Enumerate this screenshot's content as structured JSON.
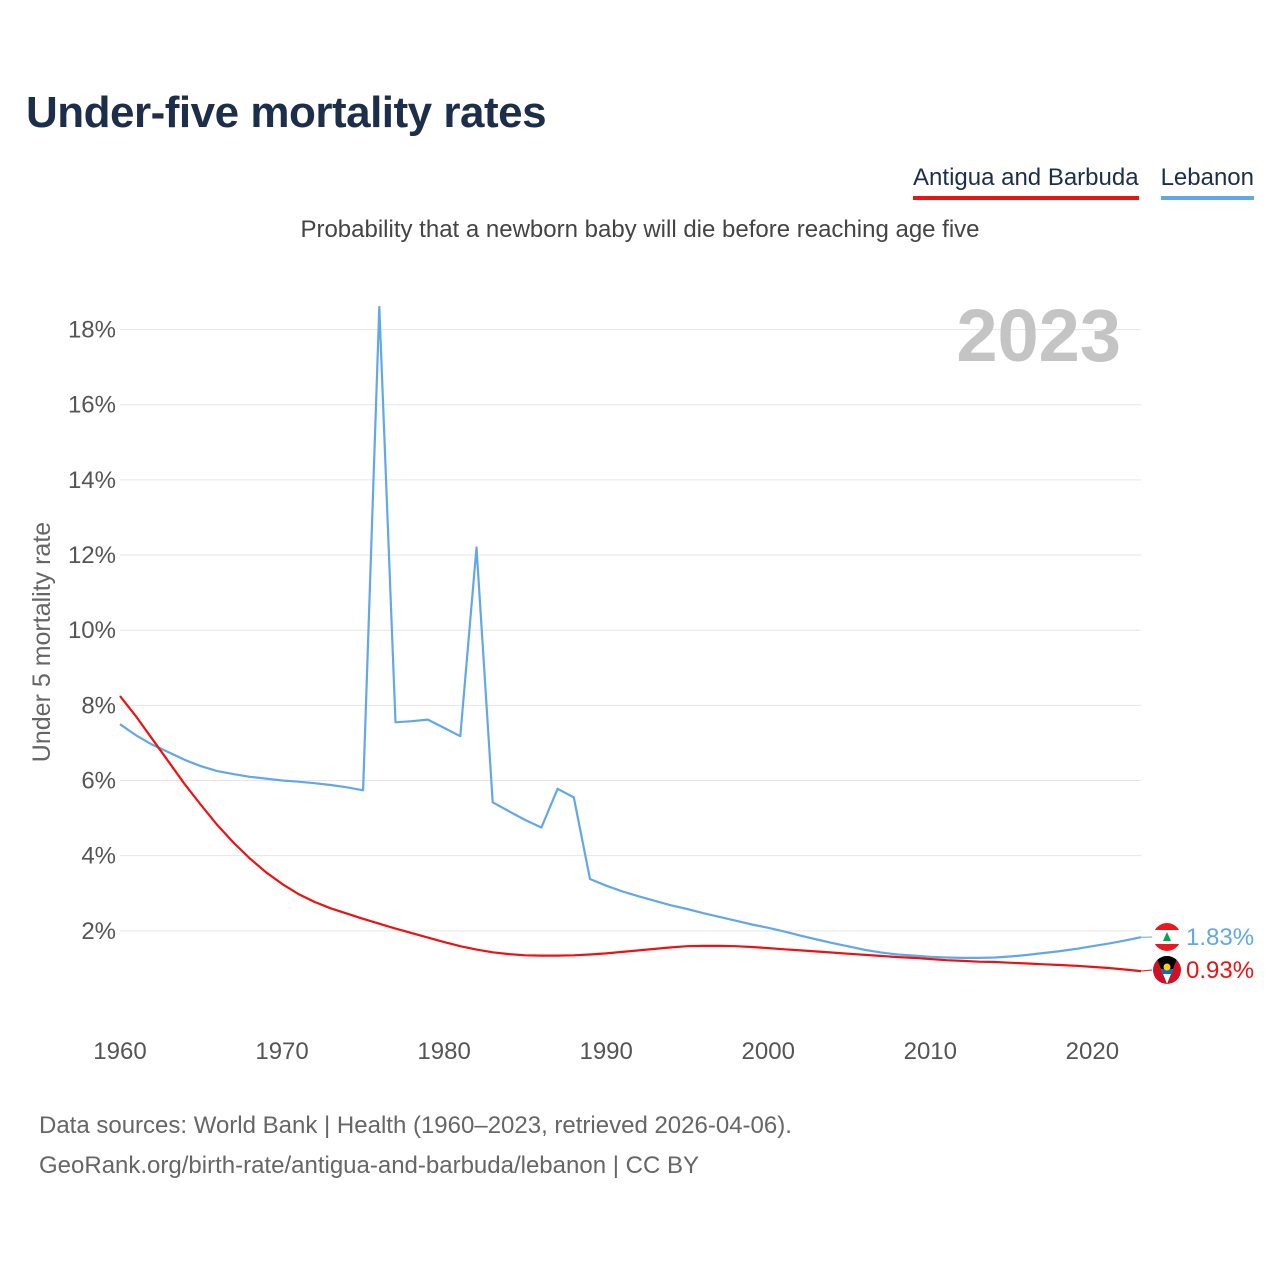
{
  "header": {
    "title": "Under-five mortality rates",
    "subtitle": "Probability that a newborn baby will die before reaching age five"
  },
  "legend": [
    {
      "label": "Antigua and Barbuda",
      "color": "#ee1111"
    },
    {
      "label": "Lebanon",
      "color": "#62a8e8"
    }
  ],
  "footer": {
    "line1": "Data sources: World Bank | Health (1960–2023, retrieved 2026-04-06).",
    "line2": "GeoRank.org/birth-rate/antigua-and-barbuda/lebanon | CC BY"
  },
  "chart_data": {
    "type": "line",
    "title": "Under-five mortality rates",
    "year_label": "2023",
    "xlabel": "",
    "ylabel": "Under 5 mortality rate",
    "xlim": [
      1960,
      2023
    ],
    "ylim": [
      0,
      19
    ],
    "x_ticks": [
      1960,
      1970,
      1980,
      1990,
      2000,
      2010,
      2020
    ],
    "y_ticks": [
      2,
      4,
      6,
      8,
      10,
      12,
      14,
      16,
      18
    ],
    "y_tick_labels": [
      "2%",
      "4%",
      "6%",
      "8%",
      "10%",
      "12%",
      "14%",
      "16%",
      "18%"
    ],
    "grid": true,
    "series": [
      {
        "name": "Lebanon",
        "color": "#62a8e8",
        "end_label": "1.83%",
        "flag": "lebanon-flag",
        "x": [
          1960,
          1961,
          1962,
          1963,
          1964,
          1965,
          1966,
          1967,
          1968,
          1969,
          1970,
          1971,
          1972,
          1973,
          1974,
          1975,
          1976,
          1977,
          1978,
          1979,
          1980,
          1981,
          1982,
          1983,
          1984,
          1985,
          1986,
          1987,
          1988,
          1989,
          1990,
          1991,
          1992,
          1993,
          1994,
          1995,
          1996,
          1997,
          1998,
          1999,
          2000,
          2001,
          2002,
          2003,
          2004,
          2005,
          2006,
          2007,
          2008,
          2009,
          2010,
          2011,
          2012,
          2013,
          2014,
          2015,
          2016,
          2017,
          2018,
          2019,
          2020,
          2021,
          2022,
          2023
        ],
        "values": [
          7.5,
          7.2,
          6.95,
          6.75,
          6.55,
          6.38,
          6.25,
          6.17,
          6.1,
          6.05,
          6.0,
          5.97,
          5.93,
          5.88,
          5.82,
          5.74,
          18.6,
          7.55,
          7.58,
          7.62,
          7.4,
          7.18,
          12.2,
          5.42,
          5.18,
          4.95,
          4.75,
          5.78,
          5.55,
          3.38,
          3.2,
          3.05,
          2.92,
          2.8,
          2.68,
          2.58,
          2.47,
          2.37,
          2.27,
          2.17,
          2.08,
          1.98,
          1.87,
          1.77,
          1.67,
          1.58,
          1.49,
          1.42,
          1.37,
          1.34,
          1.31,
          1.29,
          1.28,
          1.28,
          1.29,
          1.32,
          1.36,
          1.41,
          1.46,
          1.52,
          1.59,
          1.66,
          1.74,
          1.83
        ]
      },
      {
        "name": "Antigua and Barbuda",
        "color": "#ee1111",
        "end_label": "0.93%",
        "flag": "antigua-and-barbuda-flag",
        "x": [
          1960,
          1961,
          1962,
          1963,
          1964,
          1965,
          1966,
          1967,
          1968,
          1969,
          1970,
          1971,
          1972,
          1973,
          1974,
          1975,
          1976,
          1977,
          1978,
          1979,
          1980,
          1981,
          1982,
          1983,
          1984,
          1985,
          1986,
          1987,
          1988,
          1989,
          1990,
          1991,
          1992,
          1993,
          1994,
          1995,
          1996,
          1997,
          1998,
          1999,
          2000,
          2001,
          2002,
          2003,
          2004,
          2005,
          2006,
          2007,
          2008,
          2009,
          2010,
          2011,
          2012,
          2013,
          2014,
          2015,
          2016,
          2017,
          2018,
          2019,
          2020,
          2021,
          2022,
          2023
        ],
        "values": [
          8.25,
          7.7,
          7.1,
          6.5,
          5.9,
          5.35,
          4.82,
          4.35,
          3.93,
          3.56,
          3.25,
          2.98,
          2.77,
          2.6,
          2.46,
          2.32,
          2.19,
          2.06,
          1.94,
          1.82,
          1.7,
          1.59,
          1.5,
          1.43,
          1.38,
          1.35,
          1.34,
          1.34,
          1.35,
          1.37,
          1.4,
          1.44,
          1.48,
          1.52,
          1.56,
          1.59,
          1.6,
          1.6,
          1.59,
          1.57,
          1.54,
          1.51,
          1.48,
          1.45,
          1.42,
          1.39,
          1.36,
          1.33,
          1.3,
          1.28,
          1.25,
          1.22,
          1.2,
          1.18,
          1.17,
          1.15,
          1.13,
          1.11,
          1.09,
          1.07,
          1.04,
          1.01,
          0.97,
          0.93
        ]
      }
    ]
  }
}
